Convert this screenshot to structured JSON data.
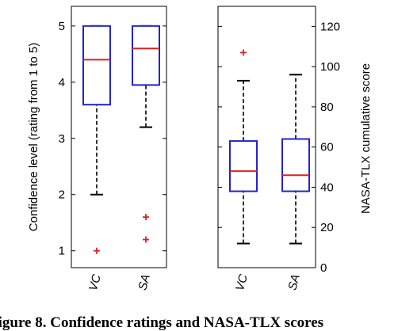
{
  "caption": "Figure 8. Confidence ratings and NASA-TLX scores",
  "chart_data": [
    {
      "type": "box",
      "ylabel": "Confidence level (rating from 1 to 5)",
      "ylim": [
        0.7,
        5.35
      ],
      "yticks": [
        1,
        2,
        3,
        4,
        5
      ],
      "categories": [
        "VC",
        "SA"
      ],
      "boxes": [
        {
          "category": "VC",
          "whisker_low": 2.0,
          "q1": 3.6,
          "median": 4.4,
          "q3": 5.0,
          "whisker_high": 5.0,
          "outliers": [
            1.0
          ]
        },
        {
          "category": "SA",
          "whisker_low": 3.2,
          "q1": 3.95,
          "median": 4.6,
          "q3": 5.0,
          "whisker_high": 5.0,
          "outliers": [
            1.6,
            1.2
          ]
        }
      ],
      "box_color": "#2323d0",
      "median_color": "#e02020",
      "outlier_color": "#e02020",
      "grid": false
    },
    {
      "type": "box",
      "ylabel": "NASA-TLX cumulative score",
      "y_axis_side": "right",
      "ylim": [
        0,
        130
      ],
      "yticks": [
        0,
        20,
        40,
        60,
        80,
        100,
        120
      ],
      "categories": [
        "VC",
        "SA"
      ],
      "boxes": [
        {
          "category": "VC",
          "whisker_low": 12,
          "q1": 38,
          "median": 48,
          "q3": 63,
          "whisker_high": 93,
          "outliers": [
            107
          ]
        },
        {
          "category": "SA",
          "whisker_low": 12,
          "q1": 38,
          "median": 46,
          "q3": 64,
          "whisker_high": 96,
          "outliers": []
        }
      ],
      "box_color": "#2323d0",
      "median_color": "#e02020",
      "outlier_color": "#e02020",
      "grid": false
    }
  ]
}
